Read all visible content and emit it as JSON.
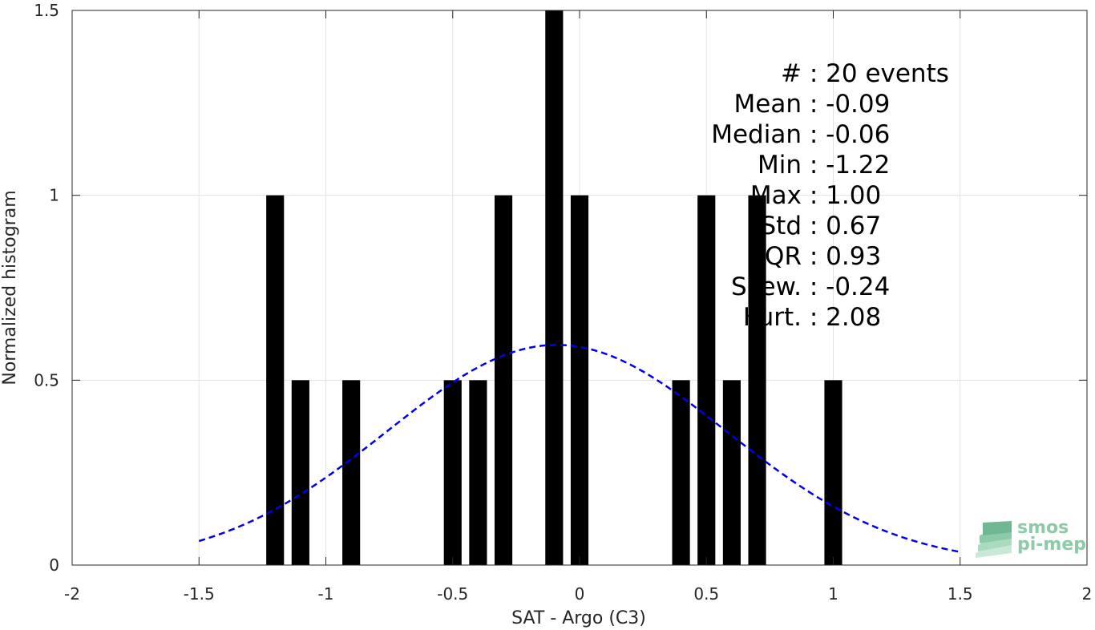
{
  "chart_data": {
    "type": "bar",
    "xlabel": "SAT - Argo (C3)",
    "ylabel": "Normalized histogram",
    "xlim": [
      -2,
      2
    ],
    "ylim": [
      0,
      1.5
    ],
    "xticks": [
      -2,
      -1.5,
      -1,
      -0.5,
      0,
      0.5,
      1,
      1.5,
      2
    ],
    "xtick_labels": [
      "-2",
      "-1.5",
      "-1",
      "-0.5",
      "0",
      "0.5",
      "1",
      "1.5",
      "2"
    ],
    "yticks": [
      0,
      0.5,
      1,
      1.5
    ],
    "ytick_labels": [
      "0",
      "0.5",
      "1",
      "1.5"
    ],
    "grid": true,
    "bar_width": 0.07,
    "bars": {
      "x": [
        -1.2,
        -1.1,
        -0.9,
        -0.5,
        -0.4,
        -0.3,
        -0.1,
        0.0,
        0.4,
        0.5,
        0.6,
        0.7,
        1.0
      ],
      "values": [
        1,
        0.5,
        0.5,
        0.5,
        0.5,
        1,
        1.5,
        1,
        0.5,
        1,
        0.5,
        1,
        0.5
      ]
    },
    "fit_curve": {
      "style": "dashed",
      "color": "#0000ee",
      "x_range": [
        -1.5,
        1.5
      ],
      "mean": -0.09,
      "std": 0.67
    },
    "bar_color": "#000000",
    "stats": [
      "#  : 20 events",
      "Mean : -0.09",
      "Median : -0.06",
      "Min : -1.22",
      "Max : 1.00",
      "Std : 0.67",
      "IQR : 0.93",
      "Skew. : -0.24",
      "Kurt. : 2.08"
    ]
  },
  "logo": {
    "line1": "smos",
    "line2": "pi-mep",
    "color": "#8ccaa8"
  }
}
